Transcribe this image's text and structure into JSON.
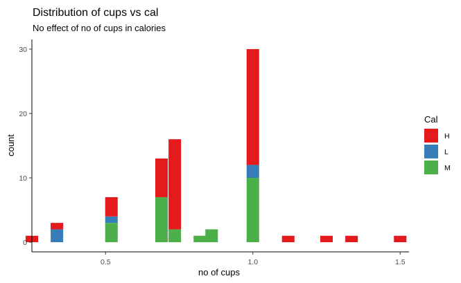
{
  "chart_data": {
    "type": "bar",
    "title": "Distribution of cups vs cal",
    "subtitle": "No effect of no of cups in calories",
    "xlabel": "no of cups",
    "ylabel": "count",
    "xlim": [
      0.25,
      1.53
    ],
    "ylim": [
      -1.5,
      31.5
    ],
    "bin_width": 0.0425,
    "x_ticks": [
      0.5,
      1.0,
      1.5
    ],
    "x_tick_labels": [
      "0.5",
      "1.0",
      "1.5"
    ],
    "y_ticks": [
      0,
      10,
      20,
      30
    ],
    "y_tick_labels": [
      "0",
      "10",
      "20",
      "30"
    ],
    "stack_order": [
      "M",
      "L",
      "H"
    ],
    "bins": [
      {
        "x": 0.25,
        "H": 1,
        "L": 0,
        "M": 0
      },
      {
        "x": 0.335,
        "H": 1,
        "L": 2,
        "M": 0
      },
      {
        "x": 0.52,
        "H": 3,
        "L": 1,
        "M": 3
      },
      {
        "x": 0.69,
        "H": 6,
        "L": 0,
        "M": 7
      },
      {
        "x": 0.735,
        "H": 14,
        "L": 0,
        "M": 2
      },
      {
        "x": 0.82,
        "H": 0,
        "L": 0,
        "M": 1
      },
      {
        "x": 0.86,
        "H": 0,
        "L": 0,
        "M": 2
      },
      {
        "x": 1.0,
        "H": 18,
        "L": 2,
        "M": 10
      },
      {
        "x": 1.12,
        "H": 1,
        "L": 0,
        "M": 0
      },
      {
        "x": 1.25,
        "H": 1,
        "L": 0,
        "M": 0
      },
      {
        "x": 1.335,
        "H": 1,
        "L": 0,
        "M": 0
      },
      {
        "x": 1.5,
        "H": 1,
        "L": 0,
        "M": 0
      }
    ],
    "legend": {
      "title": "Cal",
      "position": "right",
      "items": [
        {
          "key": "H",
          "label": "H",
          "color": "#E41A1C"
        },
        {
          "key": "L",
          "label": "L",
          "color": "#377EB8"
        },
        {
          "key": "M",
          "label": "M",
          "color": "#4DAF4A"
        }
      ]
    },
    "grid": false
  }
}
